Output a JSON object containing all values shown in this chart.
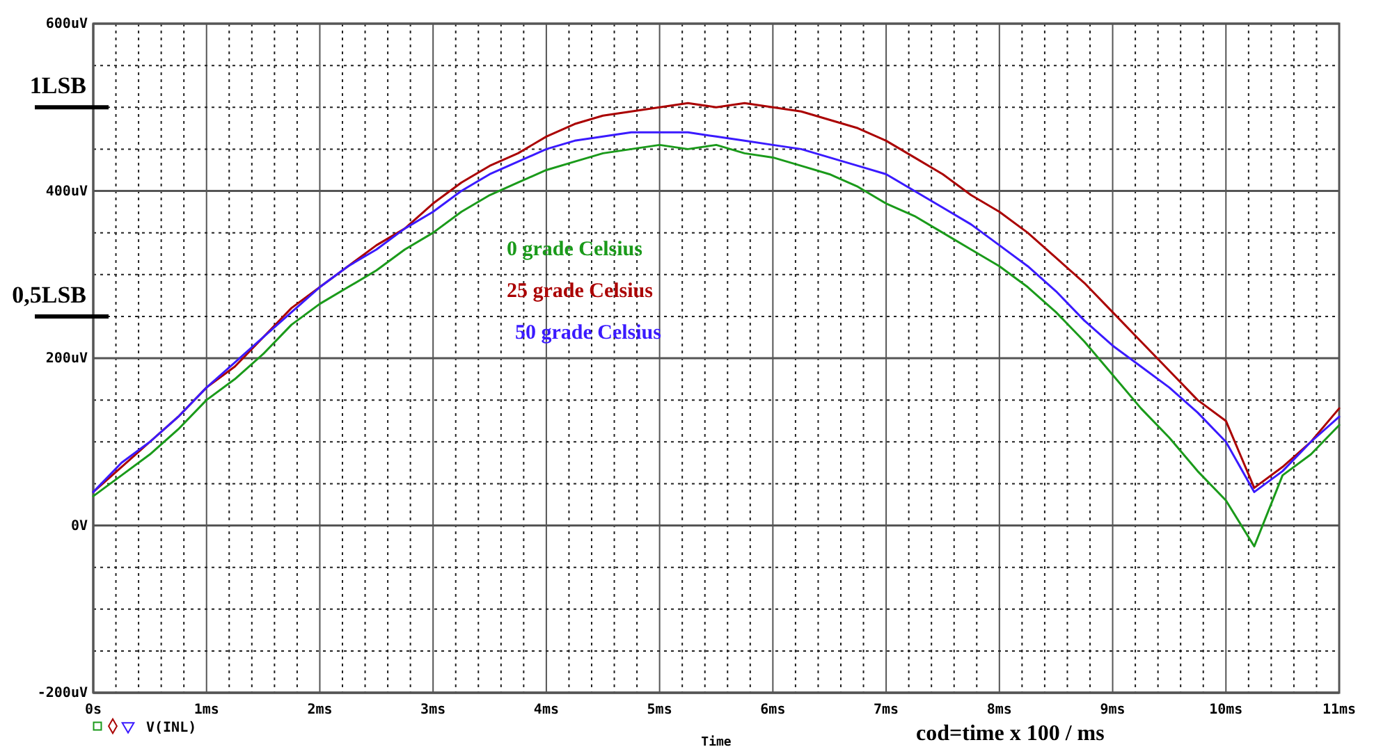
{
  "chart_data": {
    "type": "line",
    "xlabel": "Time",
    "legend": "center",
    "grid": true,
    "line_style": "solid",
    "annotations": [
      "cod=time x 100 / ms",
      "V(INL)"
    ],
    "ref_lines": [
      {
        "axis": "y",
        "value": 500,
        "label": "1LSB"
      },
      {
        "axis": "y",
        "value": 250,
        "label": "0,5LSB"
      }
    ],
    "x": [
      0,
      0.25,
      0.5,
      0.75,
      1,
      1.25,
      1.5,
      1.75,
      2,
      2.25,
      2.5,
      2.75,
      3,
      3.25,
      3.5,
      3.75,
      4,
      4.25,
      4.5,
      4.75,
      5,
      5.25,
      5.5,
      5.75,
      6,
      6.25,
      6.5,
      6.75,
      7,
      7.25,
      7.5,
      7.75,
      8,
      8.25,
      8.5,
      8.75,
      9,
      9.25,
      9.5,
      9.75,
      10,
      10.25,
      10.5,
      10.75,
      11
    ],
    "xlim": [
      0,
      11
    ],
    "xticks": [
      {
        "value": 0,
        "label": "0s"
      },
      {
        "value": 0.2,
        "label": null
      },
      {
        "value": 0.4,
        "label": null
      },
      {
        "value": 0.6,
        "label": null
      },
      {
        "value": 0.8,
        "label": null
      },
      {
        "value": 1,
        "label": "1ms"
      },
      {
        "value": 1.2,
        "label": null
      },
      {
        "value": 1.4,
        "label": null
      },
      {
        "value": 1.6,
        "label": null
      },
      {
        "value": 1.8,
        "label": null
      },
      {
        "value": 2,
        "label": "2ms"
      },
      {
        "value": 2.2,
        "label": null
      },
      {
        "value": 2.4,
        "label": null
      },
      {
        "value": 2.6,
        "label": null
      },
      {
        "value": 2.8,
        "label": null
      },
      {
        "value": 3,
        "label": "3ms"
      },
      {
        "value": 3.2,
        "label": null
      },
      {
        "value": 3.4,
        "label": null
      },
      {
        "value": 3.6,
        "label": null
      },
      {
        "value": 3.8,
        "label": null
      },
      {
        "value": 4,
        "label": "4ms"
      },
      {
        "value": 4.2,
        "label": null
      },
      {
        "value": 4.4,
        "label": null
      },
      {
        "value": 4.6,
        "label": null
      },
      {
        "value": 4.8,
        "label": null
      },
      {
        "value": 5,
        "label": "5ms"
      },
      {
        "value": 5.2,
        "label": null
      },
      {
        "value": 5.4,
        "label": null
      },
      {
        "value": 5.6,
        "label": null
      },
      {
        "value": 5.8,
        "label": null
      },
      {
        "value": 6,
        "label": "6ms"
      },
      {
        "value": 6.2,
        "label": null
      },
      {
        "value": 6.4,
        "label": null
      },
      {
        "value": 6.6,
        "label": null
      },
      {
        "value": 6.8,
        "label": null
      },
      {
        "value": 7,
        "label": "7ms"
      },
      {
        "value": 7.2,
        "label": null
      },
      {
        "value": 7.4,
        "label": null
      },
      {
        "value": 7.6,
        "label": null
      },
      {
        "value": 7.8,
        "label": null
      },
      {
        "value": 8,
        "label": "8ms"
      },
      {
        "value": 8.2,
        "label": null
      },
      {
        "value": 8.4,
        "label": null
      },
      {
        "value": 8.6,
        "label": null
      },
      {
        "value": 8.8,
        "label": null
      },
      {
        "value": 9,
        "label": "9ms"
      },
      {
        "value": 9.2,
        "label": null
      },
      {
        "value": 9.4,
        "label": null
      },
      {
        "value": 9.6,
        "label": null
      },
      {
        "value": 9.8,
        "label": null
      },
      {
        "value": 10,
        "label": "10ms"
      },
      {
        "value": 10.2,
        "label": null
      },
      {
        "value": 10.4,
        "label": null
      },
      {
        "value": 10.6,
        "label": null
      },
      {
        "value": 10.8,
        "label": null
      },
      {
        "value": 11,
        "label": "11ms"
      }
    ],
    "ylim": [
      -200,
      600
    ],
    "yticks": [
      {
        "value": -200,
        "label": "-200uV"
      },
      {
        "value": -150,
        "label": null
      },
      {
        "value": -100,
        "label": null
      },
      {
        "value": -50,
        "label": null
      },
      {
        "value": 0,
        "label": "0V"
      },
      {
        "value": 50,
        "label": null
      },
      {
        "value": 100,
        "label": null
      },
      {
        "value": 150,
        "label": null
      },
      {
        "value": 200,
        "label": "200uV"
      },
      {
        "value": 250,
        "label": null
      },
      {
        "value": 300,
        "label": null
      },
      {
        "value": 350,
        "label": null
      },
      {
        "value": 400,
        "label": "400uV"
      },
      {
        "value": 450,
        "label": null
      },
      {
        "value": 500,
        "label": null
      },
      {
        "value": 550,
        "label": null
      },
      {
        "value": 600,
        "label": "600uV"
      }
    ],
    "series": [
      {
        "name": "0 grade Celsius",
        "color": "#1a9a1a",
        "values": [
          35,
          60,
          85,
          115,
          150,
          175,
          205,
          240,
          265,
          285,
          305,
          330,
          350,
          375,
          395,
          410,
          425,
          435,
          445,
          450,
          455,
          450,
          455,
          445,
          440,
          430,
          420,
          405,
          385,
          370,
          350,
          330,
          310,
          285,
          255,
          220,
          180,
          140,
          105,
          65,
          30,
          -25,
          60,
          85,
          120
        ]
      },
      {
        "name": "25 grade Celsius",
        "color": "#aa0000",
        "values": [
          40,
          70,
          100,
          130,
          165,
          190,
          225,
          260,
          285,
          310,
          335,
          355,
          385,
          410,
          430,
          445,
          465,
          480,
          490,
          495,
          500,
          505,
          500,
          505,
          500,
          495,
          485,
          475,
          460,
          440,
          420,
          395,
          375,
          350,
          320,
          290,
          255,
          220,
          185,
          150,
          125,
          45,
          70,
          100,
          140
        ]
      },
      {
        "name": "50 grade Celsius",
        "color": "#3a1aff",
        "values": [
          40,
          75,
          100,
          130,
          165,
          195,
          225,
          255,
          285,
          310,
          330,
          355,
          375,
          400,
          420,
          435,
          450,
          460,
          465,
          470,
          470,
          470,
          465,
          460,
          455,
          450,
          440,
          430,
          420,
          400,
          380,
          360,
          335,
          310,
          280,
          245,
          215,
          190,
          165,
          135,
          100,
          40,
          65,
          100,
          130
        ]
      }
    ]
  }
}
